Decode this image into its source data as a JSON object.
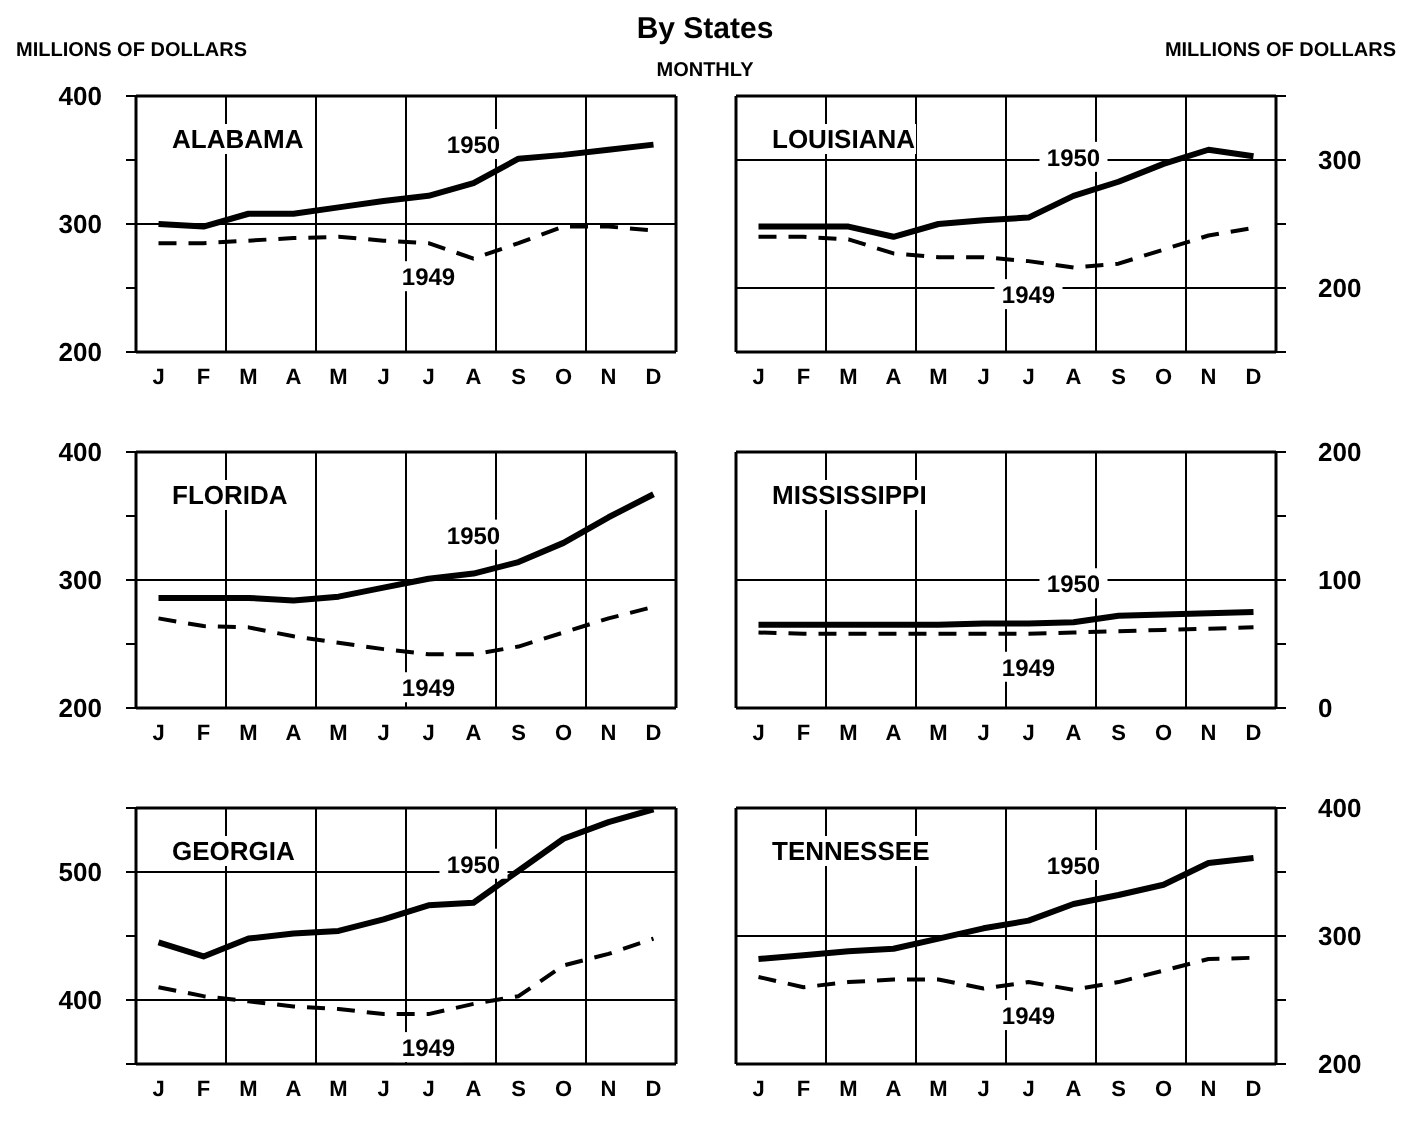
{
  "chart_data": [
    {
      "type": "line",
      "title": "ALABAMA",
      "ylabel": "MILLIONS OF DOLLARS",
      "annotations": [
        "By States",
        "MONTHLY"
      ],
      "categories": [
        "J",
        "F",
        "M",
        "A",
        "M",
        "J",
        "J",
        "A",
        "S",
        "O",
        "N",
        "D"
      ],
      "ylim": [
        200,
        400
      ],
      "yticks": [
        200,
        {
          "value": 250,
          "label": null
        },
        300,
        {
          "value": 350,
          "label": null
        },
        400
      ],
      "grid": true,
      "marker": "none",
      "series": [
        {
          "name": "1950",
          "color": "#000000",
          "line_style": "solid",
          "values": [
            300,
            298,
            308,
            308,
            313,
            318,
            322,
            332,
            351,
            354,
            358,
            362
          ]
        },
        {
          "name": "1949",
          "color": "#000000",
          "line_style": "dashed",
          "values": [
            285,
            285,
            287,
            289,
            290,
            287,
            285,
            273,
            285,
            298,
            298,
            295
          ]
        }
      ]
    },
    {
      "type": "line",
      "title": "LOUISIANA",
      "y2label": "MILLIONS OF DOLLARS",
      "categories": [
        "J",
        "F",
        "M",
        "A",
        "M",
        "J",
        "J",
        "A",
        "S",
        "O",
        "N",
        "D"
      ],
      "y2lim": [
        150,
        350
      ],
      "y2ticks": [
        {
          "value": 150,
          "label": null
        },
        200,
        {
          "value": 250,
          "label": null
        },
        300,
        {
          "value": 350,
          "label": null
        }
      ],
      "grid": true,
      "marker": "none",
      "series": [
        {
          "name": "1950",
          "color": "#000000",
          "line_style": "solid",
          "axis": "y2",
          "values": [
            248,
            248,
            248,
            240,
            250,
            253,
            255,
            272,
            283,
            297,
            308,
            303
          ]
        },
        {
          "name": "1949",
          "color": "#000000",
          "line_style": "dashed",
          "axis": "y2",
          "values": [
            240,
            240,
            238,
            227,
            224,
            224,
            221,
            216,
            219,
            230,
            241,
            247
          ]
        }
      ]
    },
    {
      "type": "line",
      "title": "FLORIDA",
      "categories": [
        "J",
        "F",
        "M",
        "A",
        "M",
        "J",
        "J",
        "A",
        "S",
        "O",
        "N",
        "D"
      ],
      "ylim": [
        200,
        400
      ],
      "yticks": [
        200,
        {
          "value": 250,
          "label": null
        },
        300,
        {
          "value": 350,
          "label": null
        },
        400
      ],
      "grid": true,
      "marker": "none",
      "series": [
        {
          "name": "1950",
          "color": "#000000",
          "line_style": "solid",
          "values": [
            286,
            286,
            286,
            284,
            287,
            294,
            301,
            305,
            314,
            329,
            349,
            367
          ]
        },
        {
          "name": "1949",
          "color": "#000000",
          "line_style": "dashed",
          "values": [
            270,
            264,
            263,
            256,
            251,
            246,
            242,
            242,
            248,
            259,
            270,
            279
          ]
        }
      ]
    },
    {
      "type": "line",
      "title": "MISSISSIPPI",
      "categories": [
        "J",
        "F",
        "M",
        "A",
        "M",
        "J",
        "J",
        "A",
        "S",
        "O",
        "N",
        "D"
      ],
      "y2lim": [
        0,
        200
      ],
      "y2ticks": [
        0,
        {
          "value": 50,
          "label": null
        },
        100,
        {
          "value": 150,
          "label": null
        },
        200
      ],
      "grid": true,
      "marker": "none",
      "series": [
        {
          "name": "1950",
          "color": "#000000",
          "line_style": "solid",
          "axis": "y2",
          "values": [
            65,
            65,
            65,
            65,
            65,
            66,
            66,
            67,
            72,
            73,
            74,
            75
          ]
        },
        {
          "name": "1949",
          "color": "#000000",
          "line_style": "dashed",
          "axis": "y2",
          "values": [
            59,
            58,
            58,
            58,
            58,
            58,
            58,
            59,
            60,
            61,
            62,
            63
          ]
        }
      ]
    },
    {
      "type": "line",
      "title": "GEORGIA",
      "categories": [
        "J",
        "F",
        "M",
        "A",
        "M",
        "J",
        "J",
        "A",
        "S",
        "O",
        "N",
        "D"
      ],
      "ylim": [
        350,
        550
      ],
      "yticks": [
        {
          "value": 350,
          "label": null
        },
        400,
        {
          "value": 450,
          "label": null
        },
        500,
        {
          "value": 550,
          "label": null
        }
      ],
      "grid": true,
      "marker": "none",
      "series": [
        {
          "name": "1950",
          "color": "#000000",
          "line_style": "solid",
          "values": [
            445,
            434,
            448,
            452,
            454,
            463,
            474,
            476,
            501,
            526,
            539,
            549
          ]
        },
        {
          "name": "1949",
          "color": "#000000",
          "line_style": "dashed",
          "values": [
            410,
            403,
            399,
            395,
            393,
            389,
            389,
            397,
            403,
            427,
            436,
            448
          ]
        }
      ]
    },
    {
      "type": "line",
      "title": "TENNESSEE",
      "categories": [
        "J",
        "F",
        "M",
        "A",
        "M",
        "J",
        "J",
        "A",
        "S",
        "O",
        "N",
        "D"
      ],
      "y2lim": [
        200,
        400
      ],
      "y2ticks": [
        200,
        {
          "value": 250,
          "label": null
        },
        300,
        {
          "value": 350,
          "label": null
        },
        400
      ],
      "grid": true,
      "marker": "none",
      "series": [
        {
          "name": "1950",
          "color": "#000000",
          "line_style": "solid",
          "axis": "y2",
          "values": [
            282,
            285,
            288,
            290,
            298,
            306,
            312,
            325,
            332,
            340,
            357,
            361
          ]
        },
        {
          "name": "1949",
          "color": "#000000",
          "line_style": "dashed",
          "axis": "y2",
          "values": [
            268,
            260,
            264,
            266,
            266,
            259,
            264,
            258,
            264,
            273,
            282,
            283
          ]
        }
      ]
    }
  ]
}
